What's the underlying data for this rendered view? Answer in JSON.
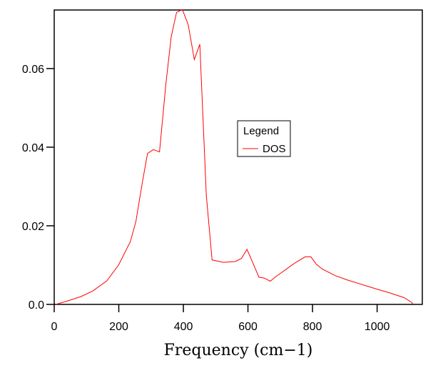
{
  "chart_data": {
    "type": "line",
    "title": "",
    "xlabel": "Frequency (cm−1)",
    "ylabel": "",
    "xlim": [
      0,
      1140
    ],
    "ylim": [
      0,
      0.0749
    ],
    "xticks": [
      0,
      200,
      400,
      600,
      800,
      1000
    ],
    "xtick_labels": [
      "0",
      "200",
      "400",
      "600",
      "800",
      "1000"
    ],
    "yticks": [
      0,
      0.02,
      0.04,
      0.06
    ],
    "ytick_labels": [
      "0.0",
      "0.02",
      "0.04",
      "0.06"
    ],
    "grid": false,
    "legend": {
      "title": "Legend",
      "placement": "center-right"
    },
    "series": [
      {
        "name": "DOS",
        "color": "#ff0000",
        "x": [
          5,
          38,
          83,
          119,
          163,
          200,
          236,
          253,
          273,
          289,
          307,
          326,
          346,
          362,
          379,
          397,
          415,
          434,
          451,
          471,
          489,
          524,
          561,
          580,
          597,
          614,
          634,
          650,
          669,
          687,
          745,
          777,
          795,
          812,
          830,
          871,
          908,
          959,
          1003,
          1040,
          1084,
          1107,
          1112
        ],
        "y": [
          0,
          0.0008,
          0.002,
          0.0034,
          0.006,
          0.0101,
          0.016,
          0.0211,
          0.0311,
          0.0384,
          0.0394,
          0.0388,
          0.0562,
          0.068,
          0.0743,
          0.075,
          0.0712,
          0.0623,
          0.0662,
          0.0278,
          0.0113,
          0.0107,
          0.0109,
          0.0117,
          0.014,
          0.0108,
          0.0069,
          0.0067,
          0.0059,
          0.0071,
          0.0105,
          0.0121,
          0.0121,
          0.0102,
          0.009,
          0.0073,
          0.0062,
          0.0049,
          0.0038,
          0.0029,
          0.0017,
          0.0005,
          0
        ]
      }
    ]
  }
}
